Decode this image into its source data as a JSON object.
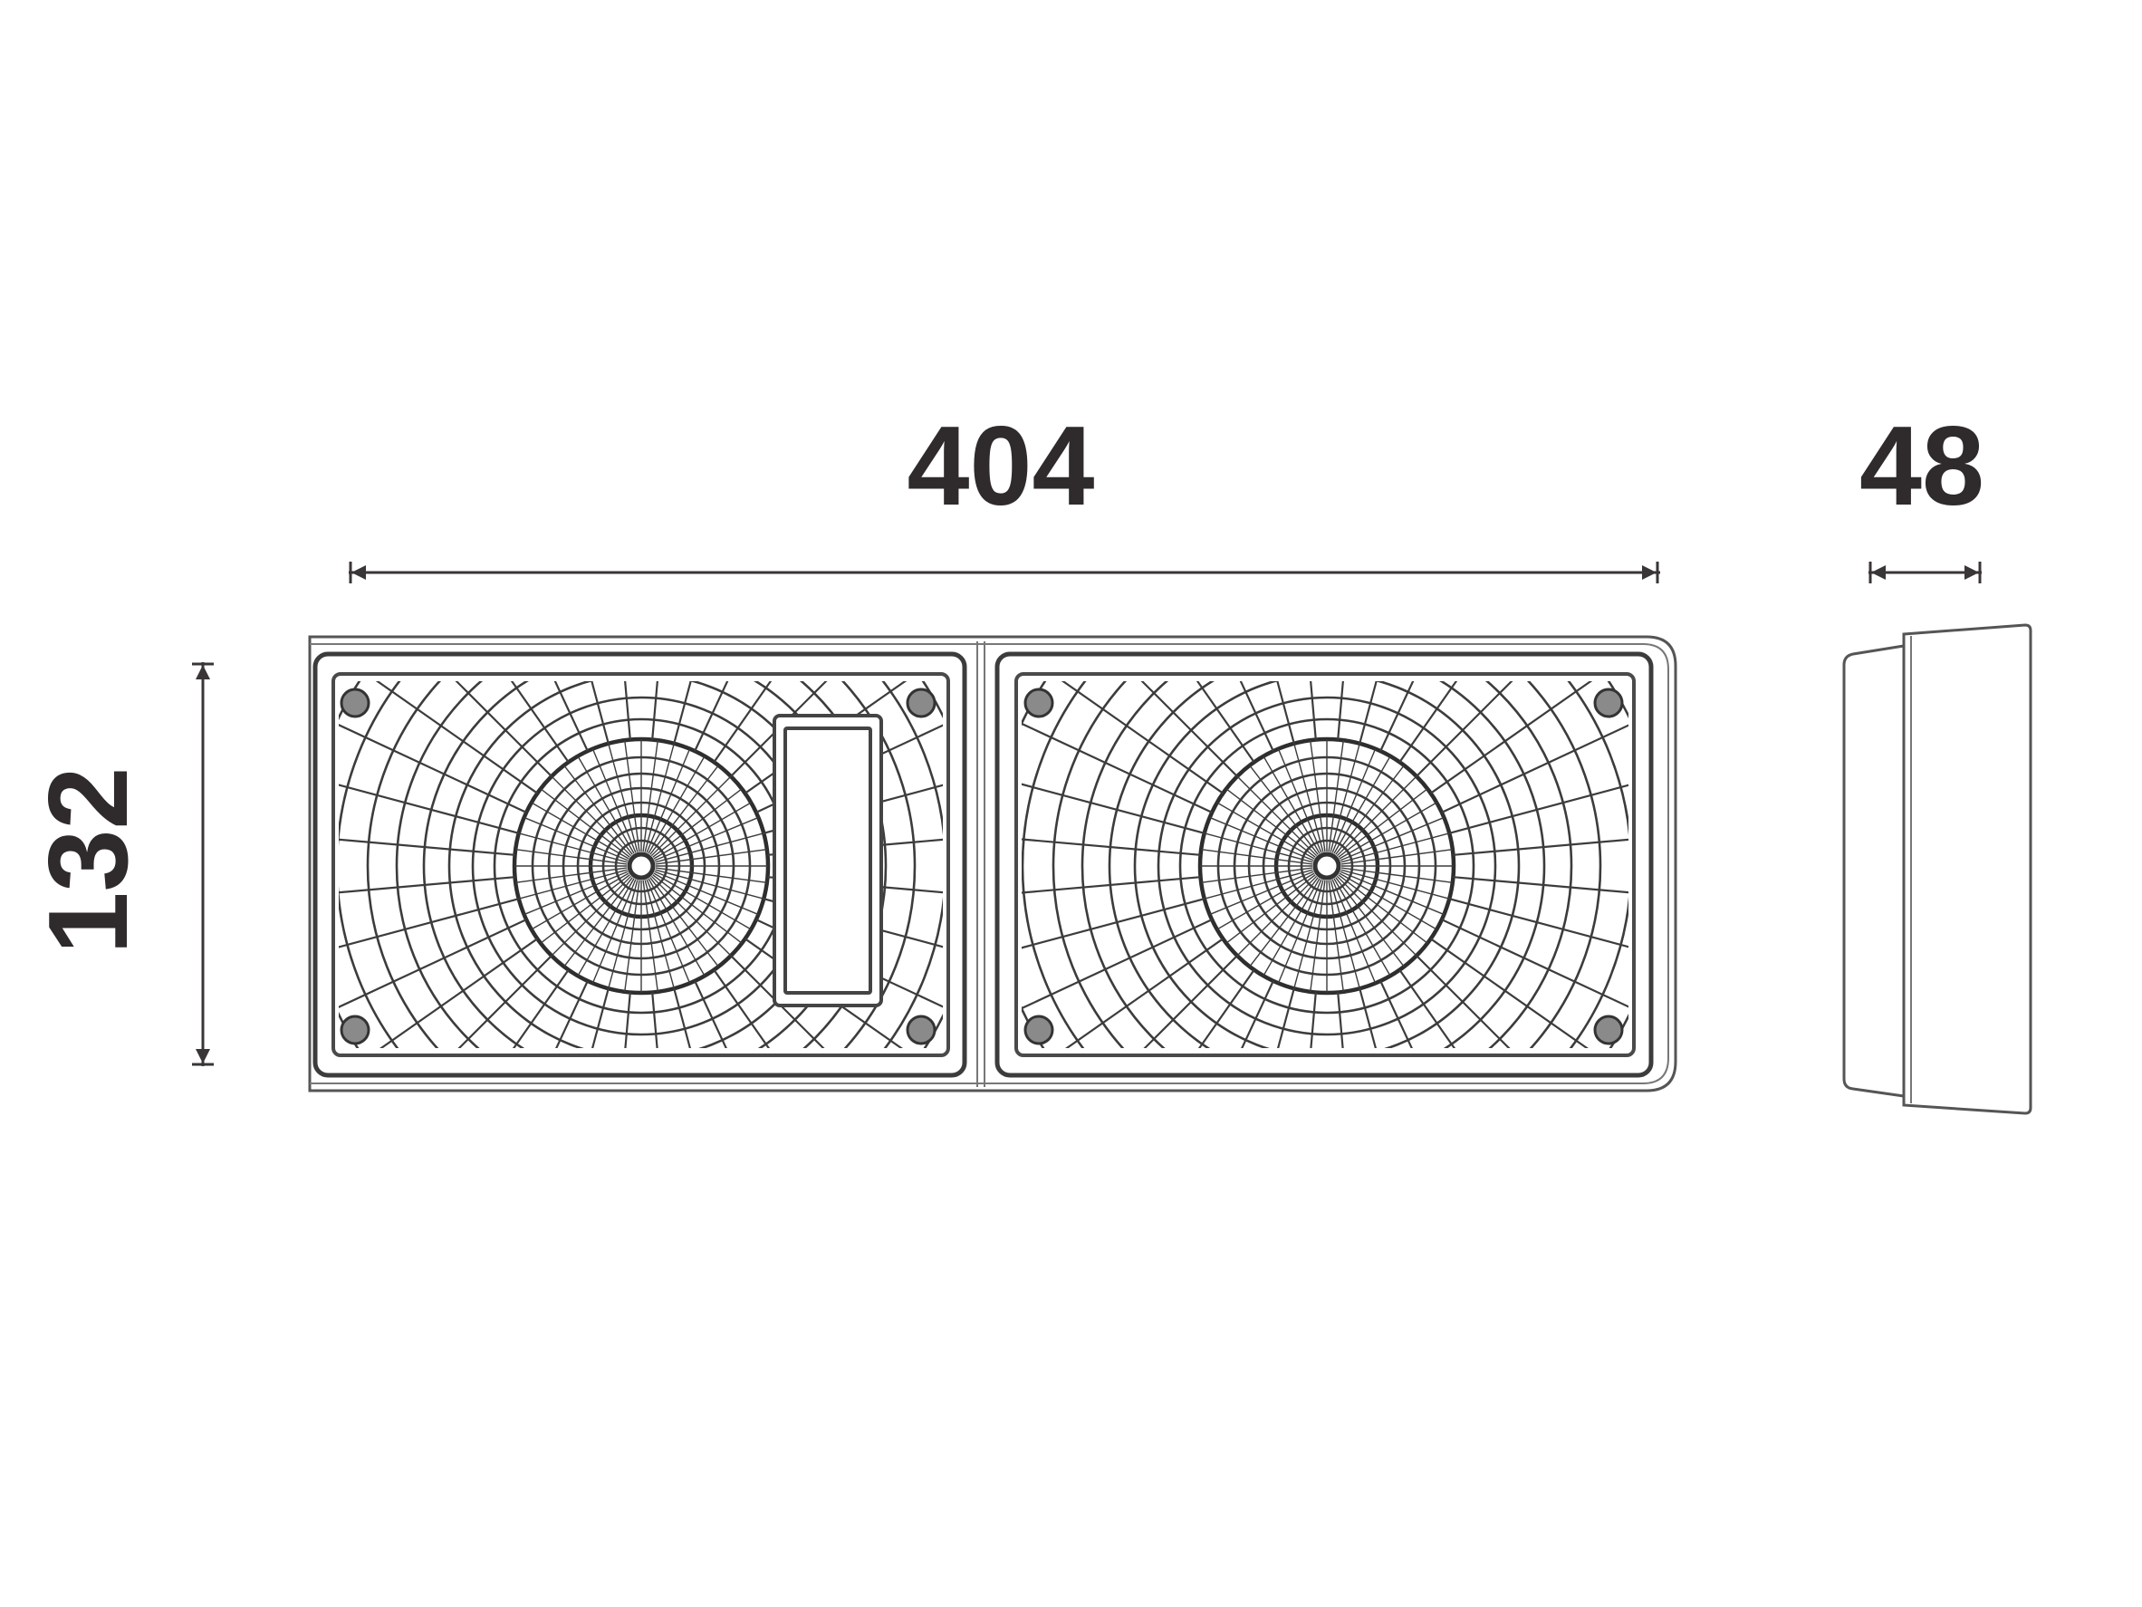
{
  "dimensions": {
    "width": {
      "value": "404"
    },
    "height": {
      "value": "132"
    },
    "depth": {
      "value": "48"
    }
  },
  "colors": {
    "text": "#2f2a2b",
    "line": "#3c3c3c",
    "background": "#ffffff"
  },
  "views": {
    "front": {
      "lamp_chambers": 2,
      "chamber_with_window": 1
    },
    "side": {
      "shown": true
    }
  }
}
